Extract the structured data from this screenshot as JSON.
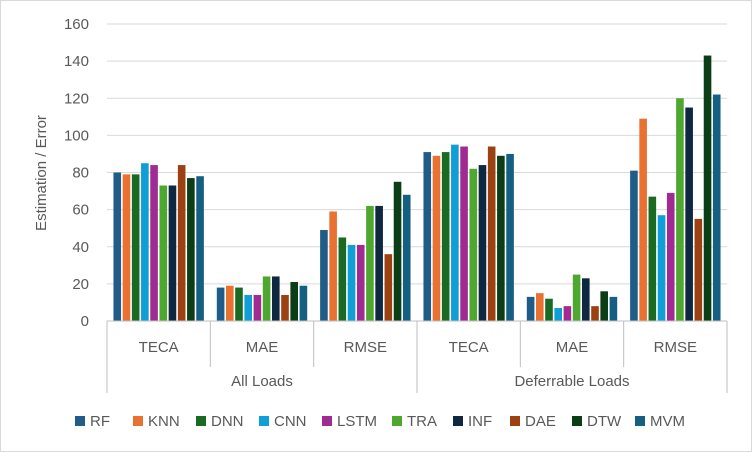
{
  "chart_data": {
    "type": "bar",
    "title": "",
    "ylabel": "Estimation / Error",
    "xlabel": "",
    "ylim": [
      0,
      160
    ],
    "yticks": [
      0,
      20,
      40,
      60,
      80,
      100,
      120,
      140,
      160
    ],
    "gridlines": true,
    "legend_position": "bottom",
    "groups": [
      {
        "name": "All Loads",
        "categories": [
          "TECA",
          "MAE",
          "RMSE"
        ]
      },
      {
        "name": "Deferrable Loads",
        "categories": [
          "TECA",
          "MAE",
          "RMSE"
        ]
      }
    ],
    "series": [
      {
        "name": "RF",
        "color": "#1F5C87",
        "values": [
          80,
          18,
          49,
          91,
          13,
          81
        ]
      },
      {
        "name": "KNN",
        "color": "#E97132",
        "values": [
          79,
          19,
          59,
          89,
          15,
          109
        ]
      },
      {
        "name": "DNN",
        "color": "#196B24",
        "values": [
          79,
          18,
          45,
          91,
          12,
          67
        ]
      },
      {
        "name": "CNN",
        "color": "#0F9ED5",
        "values": [
          85,
          14,
          41,
          95,
          7,
          57
        ]
      },
      {
        "name": "LSTM",
        "color": "#A02B93",
        "values": [
          84,
          14,
          41,
          94,
          8,
          69
        ]
      },
      {
        "name": "TRA",
        "color": "#4EA72E",
        "values": [
          73,
          24,
          62,
          82,
          25,
          120
        ]
      },
      {
        "name": "INF",
        "color": "#0E2841",
        "values": [
          73,
          24,
          62,
          84,
          23,
          115
        ]
      },
      {
        "name": "DAE",
        "color": "#9C4111",
        "values": [
          84,
          14,
          36,
          94,
          8,
          55
        ]
      },
      {
        "name": "DTW",
        "color": "#0B3D16",
        "values": [
          77,
          21,
          75,
          89,
          16,
          143
        ]
      },
      {
        "name": "MVM",
        "color": "#156082",
        "values": [
          78,
          19,
          68,
          90,
          13,
          122
        ]
      }
    ]
  }
}
